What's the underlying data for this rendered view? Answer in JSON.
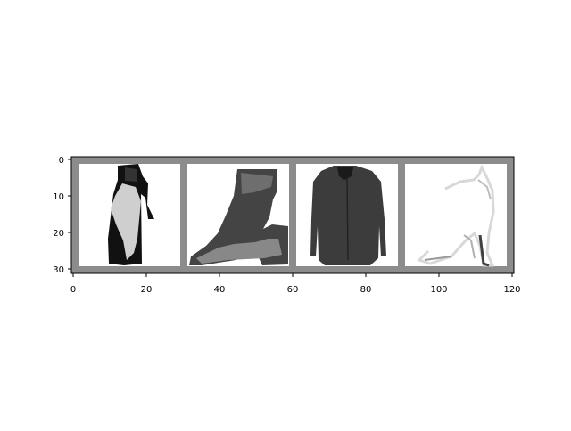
{
  "figure": {
    "x_ticks": [
      "0",
      "20",
      "40",
      "60",
      "80",
      "100",
      "120"
    ],
    "y_ticks": [
      "0",
      "10",
      "20",
      "30"
    ],
    "grid_background": "#8c8c8c",
    "panel_background": "#ffffff"
  },
  "images": [
    {
      "name": "dress-panel",
      "content": "black and light grey dress garment"
    },
    {
      "name": "boot-panel",
      "content": "dark textured ankle boot"
    },
    {
      "name": "shirt-panel",
      "content": "dark grey long sleeve shirt"
    },
    {
      "name": "sandal-panel",
      "content": "faint light sandal / strappy shoe"
    }
  ]
}
